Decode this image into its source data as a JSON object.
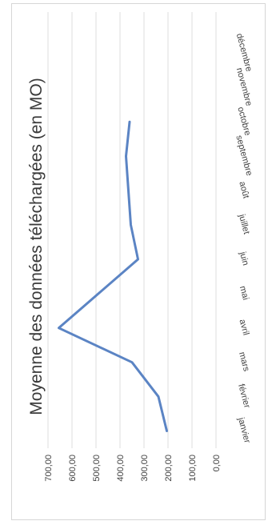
{
  "chart_data": {
    "type": "line",
    "title": "Moyenne des données téléchargées (en MO)",
    "categories": [
      "janvier",
      "février",
      "mars",
      "avril",
      "mai",
      "juin",
      "juillet",
      "août",
      "septembre",
      "octobre",
      "novembre",
      "décembre"
    ],
    "series": [
      {
        "values": [
          205,
          240,
          350,
          655,
          490,
          325,
          355,
          365,
          375,
          360,
          null,
          null
        ]
      }
    ],
    "y_ticks": [
      "0,00",
      "100,00",
      "200,00",
      "300,00",
      "400,00",
      "500,00",
      "600,00",
      "700,00"
    ],
    "ylim": [
      0,
      700
    ],
    "grid": true,
    "legend": "none",
    "line_color": "#5b84c4",
    "grid_color": "#dcdcdc"
  }
}
